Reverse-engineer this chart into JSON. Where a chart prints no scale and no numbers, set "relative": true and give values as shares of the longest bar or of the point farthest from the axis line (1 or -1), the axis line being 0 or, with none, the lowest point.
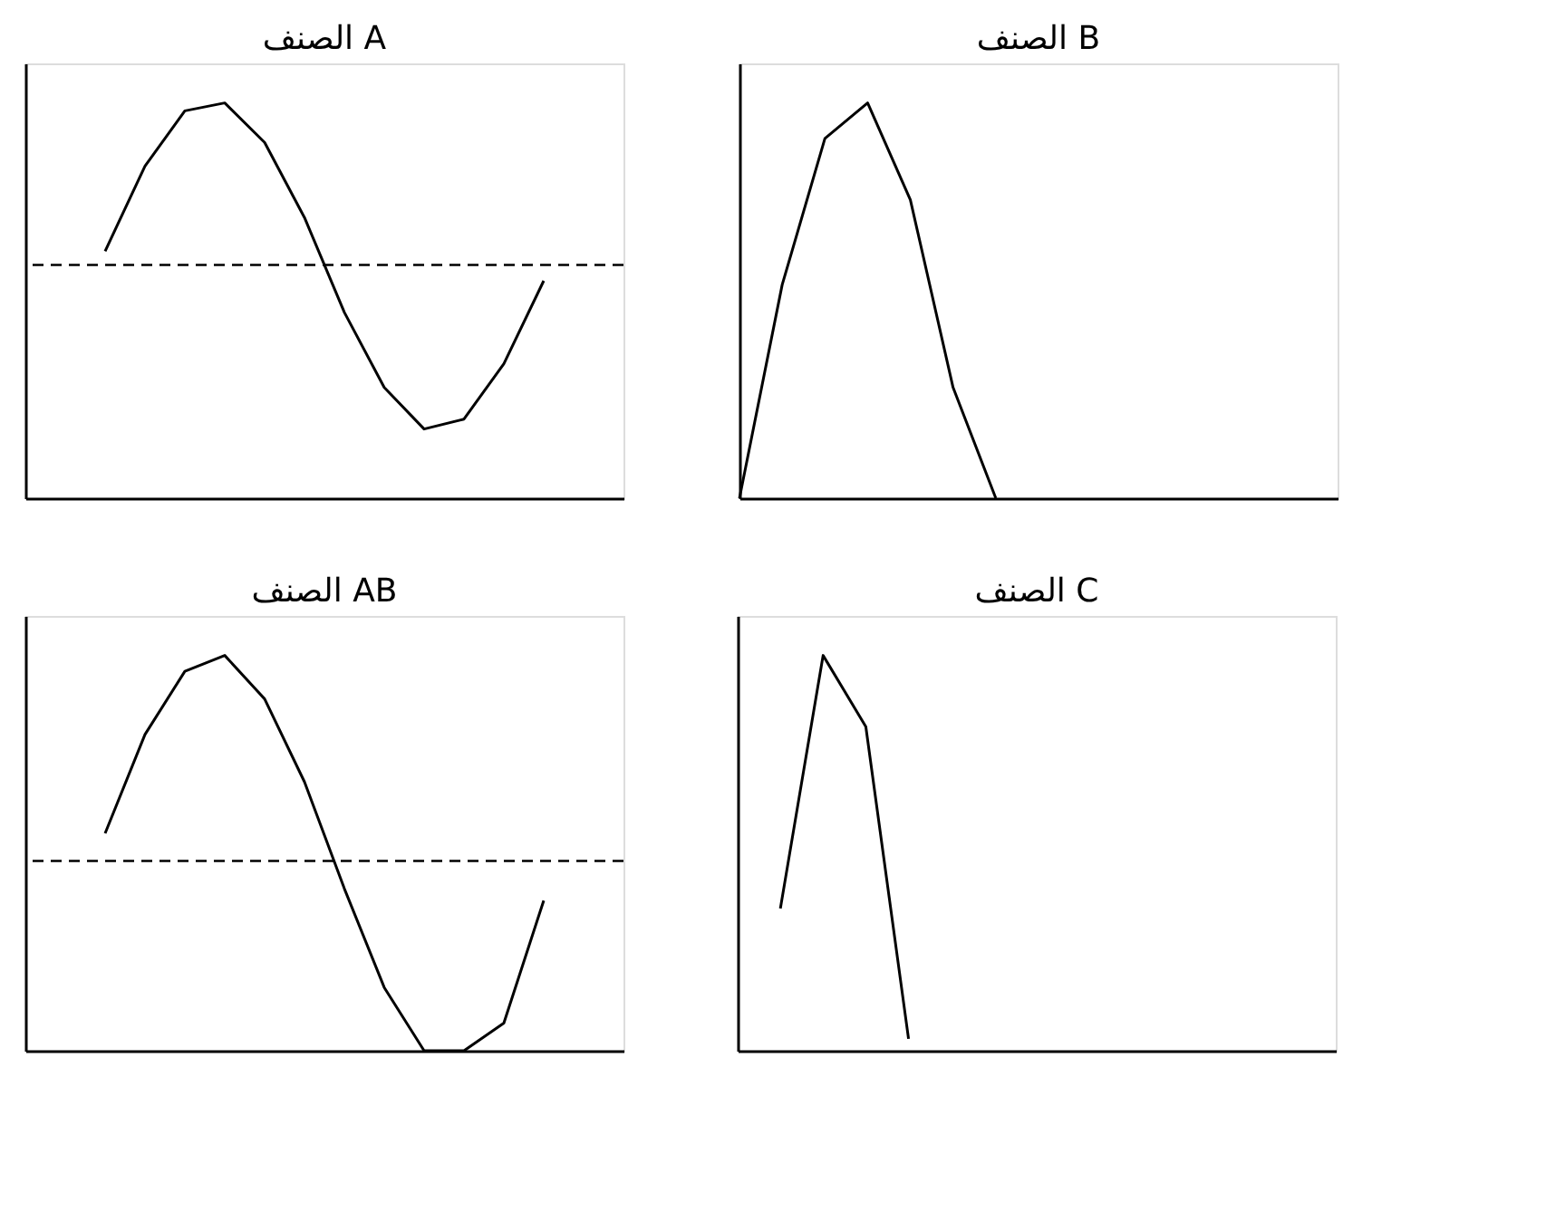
{
  "chart_data": [
    {
      "type": "line",
      "title": "الصنف A",
      "relative": true,
      "grid": false,
      "tick_labels": false,
      "marker": "none",
      "line_style": "solid",
      "categories": [
        null,
        null,
        null,
        null,
        null,
        null,
        null,
        null,
        null,
        null,
        null,
        null,
        null,
        null,
        null,
        null
      ],
      "series": [
        {
          "color": "#000000",
          "values": [
            null,
            null,
            0.625,
            0.84,
            0.98,
            1.0,
            0.9,
            0.71,
            0.47,
            0.28,
            0.175,
            0.2,
            0.34,
            0.55,
            null,
            null
          ]
        }
      ],
      "ref_lines": [
        {
          "axis": "y",
          "value": 0.59,
          "color": "#000000",
          "line_style": "dashed"
        }
      ]
    },
    {
      "type": "line",
      "title": "الصنف B",
      "relative": true,
      "grid": false,
      "tick_labels": false,
      "marker": "none",
      "line_style": "solid",
      "categories": [
        null,
        null,
        null,
        null,
        null,
        null,
        null,
        null,
        null,
        null,
        null,
        null,
        null,
        null,
        null
      ],
      "series": [
        {
          "color": "#000000",
          "values": [
            0,
            0.54,
            0.91,
            1.0,
            0.755,
            0.28,
            0,
            null,
            null,
            null,
            null,
            null,
            null,
            null,
            null
          ]
        }
      ]
    },
    {
      "type": "line",
      "title": "الصنف AB",
      "relative": true,
      "grid": false,
      "tick_labels": false,
      "marker": "none",
      "line_style": "solid",
      "categories": [
        null,
        null,
        null,
        null,
        null,
        null,
        null,
        null,
        null,
        null,
        null,
        null,
        null,
        null,
        null,
        null
      ],
      "series": [
        {
          "color": "#000000",
          "values": [
            null,
            null,
            0.55,
            0.8,
            0.96,
            1.0,
            0.89,
            0.68,
            0.41,
            0.16,
            0,
            0,
            0.07,
            0.38,
            null,
            null
          ]
        }
      ],
      "ref_lines": [
        {
          "axis": "y",
          "value": 0.48,
          "color": "#000000",
          "line_style": "dashed"
        }
      ]
    },
    {
      "type": "line",
      "title": "الصنف C",
      "relative": true,
      "grid": false,
      "tick_labels": false,
      "marker": "none",
      "line_style": "solid",
      "categories": [
        null,
        null,
        null,
        null,
        null,
        null,
        null,
        null,
        null,
        null,
        null,
        null,
        null,
        null,
        null
      ],
      "series": [
        {
          "color": "#000000",
          "values": [
            null,
            0.36,
            1.0,
            0.82,
            0.03,
            null,
            null,
            null,
            null,
            null,
            null,
            null,
            null,
            null,
            null
          ]
        }
      ]
    }
  ]
}
